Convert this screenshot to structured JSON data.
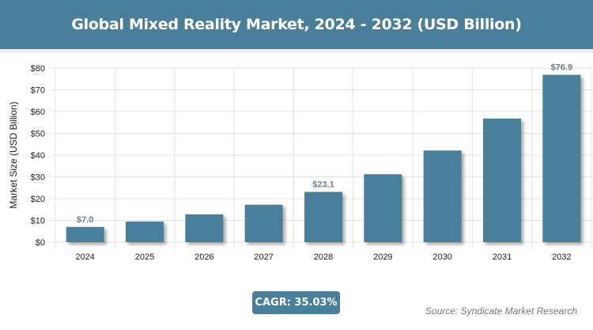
{
  "header": {
    "title": "Global Mixed Reality Market, 2024 - 2032 (USD Billion)"
  },
  "footer": {
    "cagr": "CAGR: 35.03%",
    "source": "Source: Syndicate Market Research"
  },
  "chart_data": {
    "type": "bar",
    "title": "Global Mixed Reality Market, 2024 - 2032 (USD Billion)",
    "xlabel": "",
    "ylabel": "Market Size (USD Billion)",
    "categories": [
      "2024",
      "2025",
      "2026",
      "2027",
      "2028",
      "2029",
      "2030",
      "2031",
      "2032"
    ],
    "values": [
      7.0,
      9.5,
      12.8,
      17.2,
      23.1,
      31.2,
      42.1,
      56.8,
      76.9
    ],
    "data_labels": {
      "0": "$7.0",
      "4": "$23.1",
      "8": "$76.9"
    },
    "ylim": [
      0,
      80
    ],
    "yticks": [
      "$0",
      "$10",
      "$20",
      "$30",
      "$40",
      "$50",
      "$60",
      "$70",
      "$80"
    ],
    "grid": true,
    "bar_color": "#4a7f9b"
  }
}
